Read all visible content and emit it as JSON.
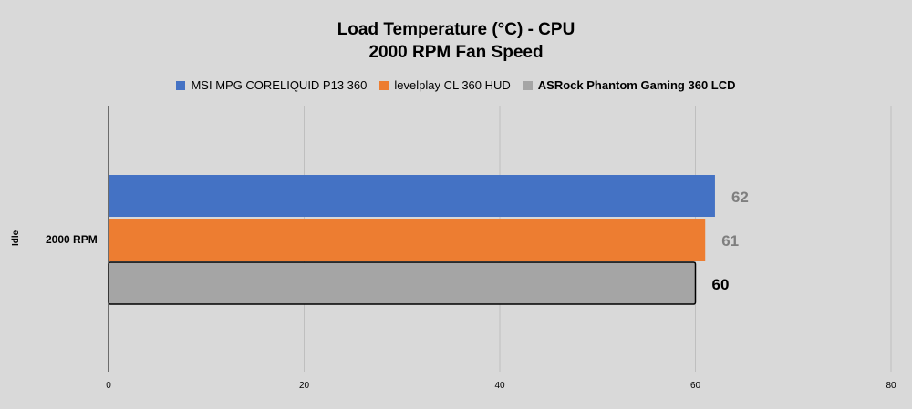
{
  "chart_data": {
    "type": "bar",
    "orientation": "horizontal",
    "title": "Load Temperature (°C) - CPU",
    "subtitle": "2000 RPM Fan Speed",
    "group_label": "Idle",
    "categories": [
      "2000 RPM"
    ],
    "series": [
      {
        "name": "MSI MPG CORELIQUID P13 360",
        "values": [
          62
        ],
        "color": "#4472c4"
      },
      {
        "name": "levelplay CL 360 HUD",
        "values": [
          61
        ],
        "color": "#ed7d31"
      },
      {
        "name": "ASRock Phantom Gaming 360 LCD",
        "values": [
          60
        ],
        "color": "#a5a5a5"
      }
    ],
    "xlim": [
      0,
      80
    ],
    "x_ticks": [
      0,
      20,
      40,
      60,
      80
    ],
    "grid": "vertical",
    "legend_position": "top"
  }
}
